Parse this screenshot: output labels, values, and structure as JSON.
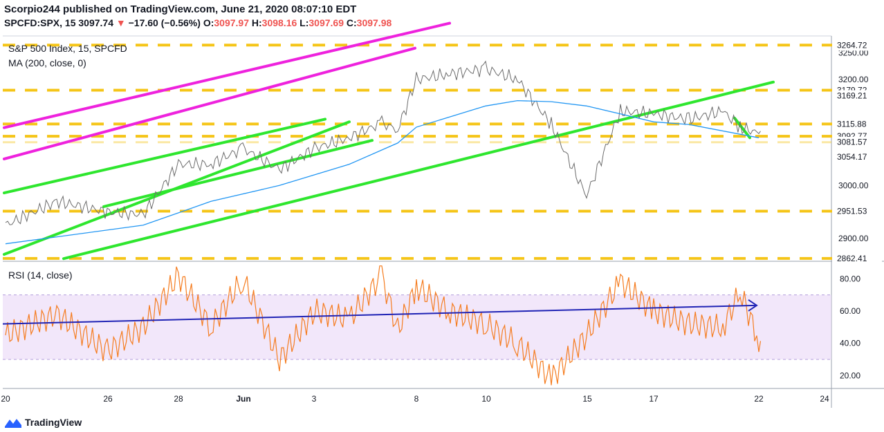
{
  "header": {
    "published": "Scorpio244 published on TradingView.com, June 21, 2020 08:07:10 EDT",
    "symbol": "SPCFD:SPX, 15",
    "last": "3097.74",
    "arrow": "▼",
    "change": "−17.60 (−0.56%)",
    "o_label": "O:",
    "o_value": "3097.97",
    "h_label": "H:",
    "h_value": "3098.16",
    "l_label": "L:",
    "l_value": "3097.69",
    "c_label": "C:",
    "c_value": "3097.98"
  },
  "main_pane": {
    "title": "S&P 500 Index, 15, SPCFD",
    "ma_label": "MA (200, close, 0)"
  },
  "rsi_pane": {
    "title": "RSI (14, close)"
  },
  "footer": {
    "brand": "TradingView"
  },
  "colors": {
    "price": "#6b6b6b",
    "ma": "#2196f3",
    "rsi": "#f57c1f",
    "rsi_band": "#e9d7f7",
    "support_resistance": "#f5c518",
    "trend_green": "#2ee62e",
    "trend_magenta": "#ee22dd",
    "rsi_trend": "#1f23b5",
    "negative": "#ef5350"
  },
  "chart_data": [
    {
      "type": "line",
      "title": "S&P 500 Index, 15, SPCFD",
      "x_ticks": [
        "20",
        "26",
        "28",
        "Jun",
        "3",
        "8",
        "10",
        "15",
        "17",
        "22",
        "24"
      ],
      "y_ticks": [
        3250.0,
        3200.0,
        3000.0,
        2900.0
      ],
      "ylim": [
        2857,
        3282
      ],
      "price_levels": [
        3264.72,
        3179.72,
        3169.21,
        3115.88,
        3092.77,
        3081.57,
        3054.17,
        2951.53,
        2862.41
      ],
      "dashed_levels": [
        3264.72,
        3179.72,
        3115.88,
        3092.77,
        2951.53,
        2862.41
      ],
      "faint_levels": [
        3081.57
      ],
      "series": [
        {
          "name": "S&P 500 Index",
          "x": [
            "May 20",
            "May 21",
            "May 22",
            "May 26",
            "May 27",
            "May 28",
            "May 29",
            "Jun 1",
            "Jun 2",
            "Jun 3",
            "Jun 4",
            "Jun 5",
            "Jun 8",
            "Jun 9",
            "Jun 10",
            "Jun 11",
            "Jun 12",
            "Jun 15",
            "Jun 16",
            "Jun 17",
            "Jun 18",
            "Jun 19",
            "Jun 20",
            "Jun 21"
          ],
          "values": [
            2925,
            2970,
            2950,
            2945,
            3040,
            3040,
            3070,
            3030,
            3070,
            3090,
            3118,
            3105,
            3200,
            3210,
            3220,
            3200,
            3115,
            2980,
            3140,
            3135,
            3125,
            3140,
            3110,
            3098
          ]
        },
        {
          "name": "MA (200, close, 0)",
          "x": [
            "May 20",
            "May 26",
            "May 28",
            "Jun 1",
            "Jun 3",
            "Jun 5",
            "Jun 8",
            "Jun 10",
            "Jun 11",
            "Jun 12",
            "Jun 15",
            "Jun 16",
            "Jun 17",
            "Jun 18",
            "Jun 21"
          ],
          "values": [
            2890,
            2925,
            2970,
            3000,
            3040,
            3080,
            3110,
            3150,
            3160,
            3158,
            3150,
            3135,
            3120,
            3115,
            3090
          ]
        }
      ]
    },
    {
      "type": "line",
      "title": "RSI (14, close)",
      "y_ticks": [
        80.0,
        60.0,
        40.0,
        20.0
      ],
      "ylim": [
        12,
        90
      ],
      "band": [
        30,
        70
      ],
      "series": [
        {
          "name": "RSI (14, close)",
          "x": [
            "May 20",
            "May 21",
            "May 22",
            "May 26",
            "May 27",
            "May 28",
            "May 29",
            "Jun 1",
            "Jun 2",
            "Jun 3",
            "Jun 4",
            "Jun 5",
            "Jun 8",
            "Jun 9",
            "Jun 10",
            "Jun 11",
            "Jun 12",
            "Jun 15",
            "Jun 16",
            "Jun 17",
            "Jun 18",
            "Jun 19",
            "Jun 20",
            "Jun 21"
          ],
          "values": [
            45,
            58,
            35,
            50,
            82,
            50,
            80,
            30,
            60,
            55,
            82,
            48,
            75,
            60,
            52,
            40,
            18,
            45,
            78,
            60,
            52,
            50,
            72,
            42
          ]
        }
      ]
    }
  ]
}
